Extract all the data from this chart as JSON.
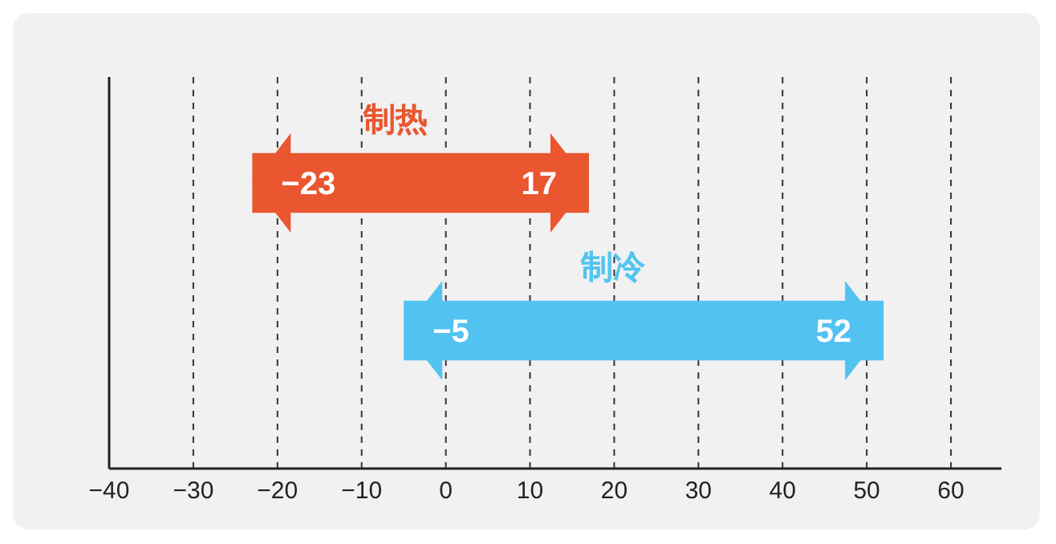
{
  "chart_data": {
    "type": "bar",
    "orientation": "horizontal",
    "categories": [
      "制热",
      "制冷"
    ],
    "values": [
      40,
      57
    ],
    "colors": [
      "#e9562f",
      "#52c3f1"
    ],
    "base": [
      -23,
      -5
    ],
    "xlim": [
      -40,
      66
    ],
    "xticks": [
      {
        "value": -40,
        "label": "−40"
      },
      {
        "value": -30,
        "label": "−30"
      },
      {
        "value": -20,
        "label": "−20"
      },
      {
        "value": -10,
        "label": "−10"
      },
      0,
      10,
      20,
      30,
      40,
      50,
      60
    ],
    "grid": "x",
    "legend": false,
    "annotations": [
      {
        "text": "−23",
        "x": -23,
        "y": "制热"
      },
      {
        "text": "17",
        "x": 17,
        "y": "制热"
      },
      {
        "text": "−5",
        "x": -5,
        "y": "制冷"
      },
      {
        "text": "52",
        "x": 52,
        "y": "制冷"
      }
    ]
  }
}
